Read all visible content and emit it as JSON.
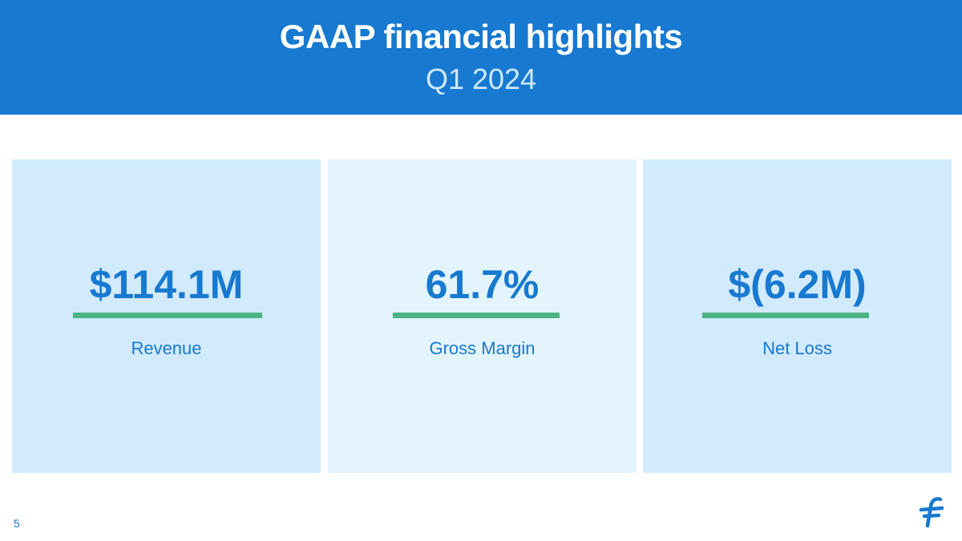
{
  "header": {
    "title": "GAAP financial highlights",
    "subtitle": "Q1 2024"
  },
  "cards": [
    {
      "value": "$114.1M",
      "label": "Revenue",
      "background": "#d2eafd"
    },
    {
      "value": "61.7%",
      "label": "Gross Margin",
      "background": "#e3f4fd"
    },
    {
      "value": "$(6.2M)",
      "label": "Net Loss",
      "background": "#d2eafd"
    }
  ],
  "footer": {
    "page_number": "5",
    "logo_icon": "brand-f-logo-icon"
  },
  "colors": {
    "primary": "#1779d0",
    "accent_bar": "#4cb484",
    "subtitle": "#cde9fb"
  }
}
